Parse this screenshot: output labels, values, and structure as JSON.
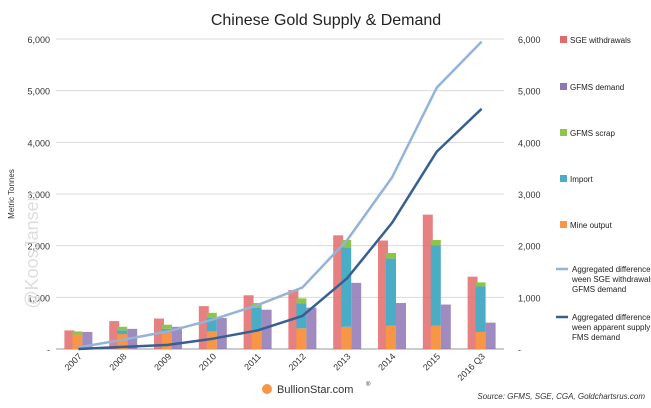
{
  "chart_data": {
    "type": "bar",
    "title": "Chinese Gold Supply & Demand",
    "ylabel": "Metric Tonnes",
    "ylim": [
      0,
      6000
    ],
    "yticks": [
      0,
      1000,
      2000,
      3000,
      4000,
      5000,
      6000
    ],
    "ytick_labels": [
      "-",
      "1,000",
      "2,000",
      "3,000",
      "4,000",
      "5,000",
      "6,000"
    ],
    "categories": [
      "2007",
      "2008",
      "2009",
      "2010",
      "2011",
      "2012",
      "2013",
      "2014",
      "2015",
      "2016 Q3"
    ],
    "grid": true,
    "legend_position": "right",
    "bars": [
      {
        "name": "SGE withdrawals",
        "color": "#e36a6a",
        "values": [
          360,
          540,
          590,
          830,
          1040,
          1140,
          2200,
          2100,
          2600,
          1400
        ]
      },
      {
        "name": "GFMS demand",
        "color": "#8e77b5",
        "values": [
          330,
          390,
          430,
          600,
          760,
          800,
          1280,
          890,
          860,
          510
        ]
      }
    ],
    "stacked_bars": [
      {
        "name": "Mine output",
        "color": "#f79646",
        "values": [
          280,
          290,
          320,
          340,
          370,
          400,
          430,
          450,
          450,
          330
        ]
      },
      {
        "name": "Import",
        "color": "#4bacc6",
        "values": [
          0,
          70,
          70,
          260,
          430,
          480,
          1540,
          1300,
          1560,
          880
        ]
      },
      {
        "name": "GFMS scrap",
        "color": "#8fc34b",
        "values": [
          60,
          70,
          80,
          100,
          90,
          100,
          140,
          110,
          100,
          80
        ]
      }
    ],
    "lines": [
      {
        "name": "Aggregated difference between SGE withdrawals and GFMS demand",
        "color": "#95b3d7",
        "values": [
          30,
          180,
          340,
          570,
          850,
          1190,
          2110,
          3320,
          5060,
          5950
        ]
      },
      {
        "name": "Aggregated difference between apparent supply and GFMS demand",
        "color": "#376092",
        "values": [
          0,
          40,
          80,
          200,
          360,
          640,
          1370,
          2440,
          3820,
          4650
        ]
      }
    ],
    "watermark": "@KoosJansen",
    "logo_text": "BullionStar.com",
    "logo_mark": "®",
    "source": "Source: GFMS, SGE, CGA, Goldchartsrus.com"
  }
}
